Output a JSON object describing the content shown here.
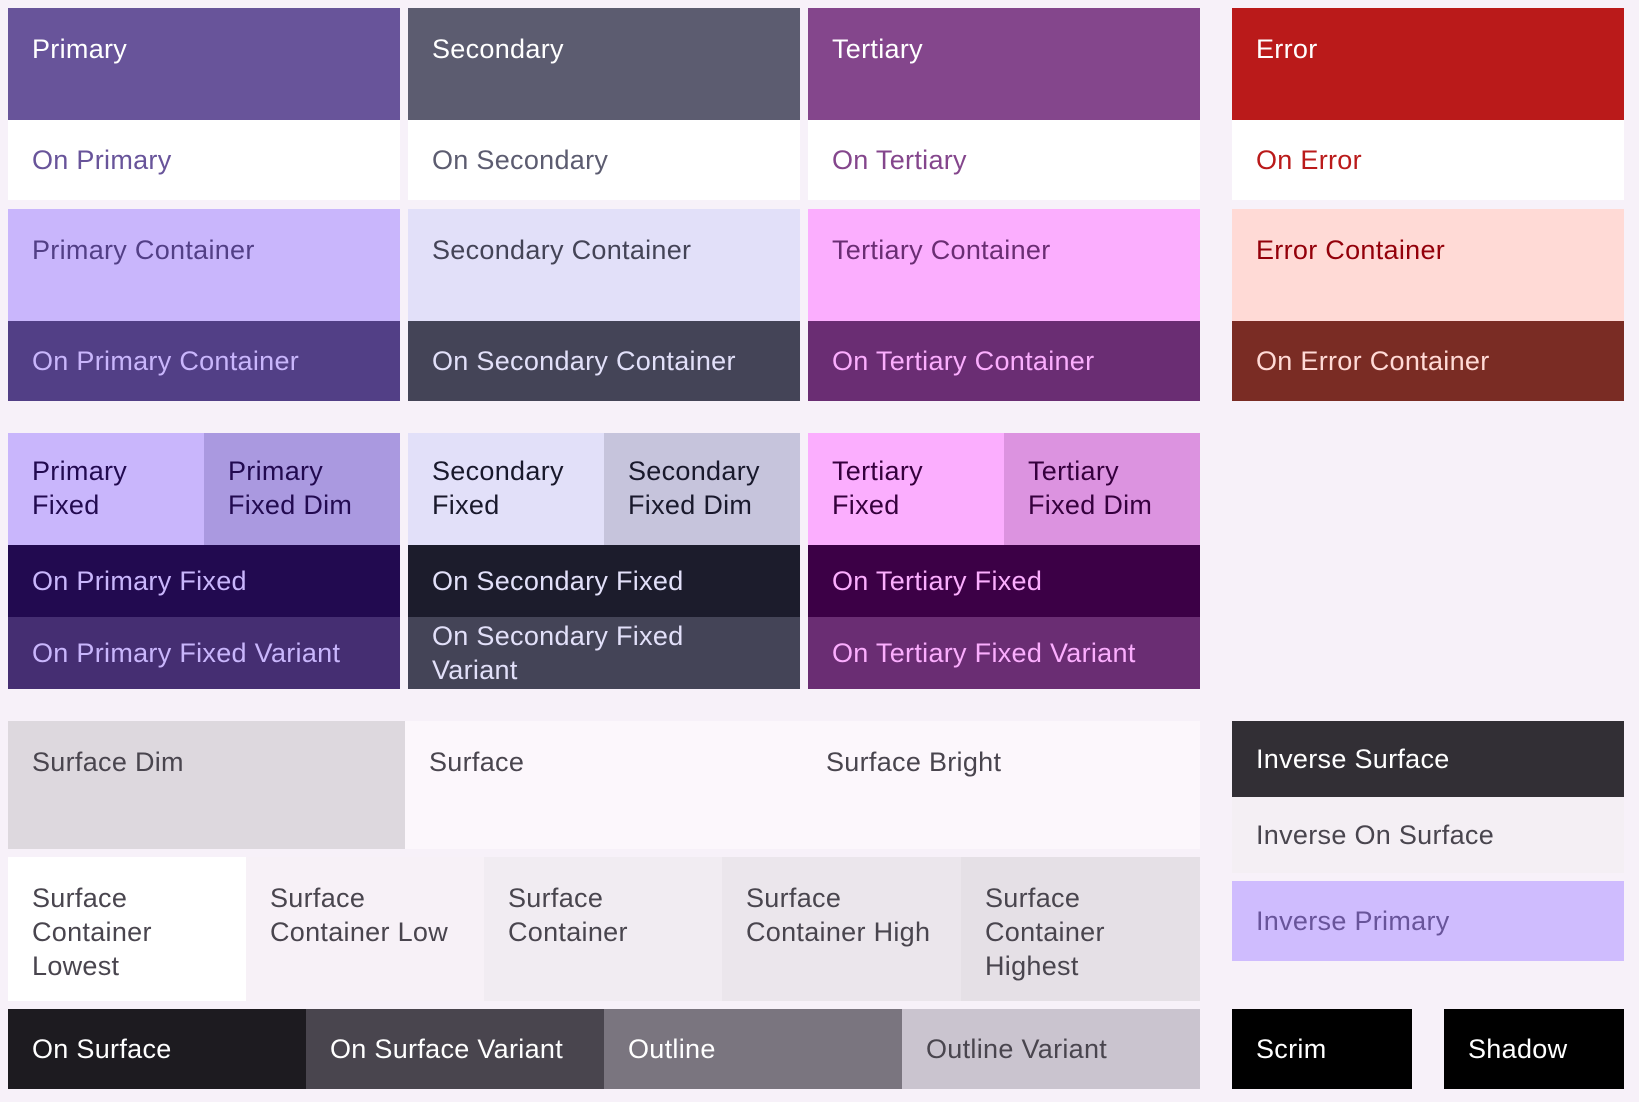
{
  "roles": {
    "primary": {
      "label": "Primary",
      "bg": "#68549a",
      "fg": "#ffffff"
    },
    "on_primary": {
      "label": "On Primary",
      "bg": "#ffffff",
      "fg": "#68549a"
    },
    "primary_container": {
      "label": "Primary Container",
      "bg": "#c9b6fc",
      "fg": "#523f86"
    },
    "on_primary_container": {
      "label": "On Primary Container",
      "bg": "#523f86",
      "fg": "#c9b6fc"
    },
    "secondary": {
      "label": "Secondary",
      "bg": "#5c5c70",
      "fg": "#ffffff"
    },
    "on_secondary": {
      "label": "On Secondary",
      "bg": "#ffffff",
      "fg": "#5c5c70"
    },
    "secondary_container": {
      "label": "Secondary Container",
      "bg": "#e2e0f9",
      "fg": "#444457"
    },
    "on_secondary_container": {
      "label": "On Secondary Container",
      "bg": "#444457",
      "fg": "#e2e0f9"
    },
    "tertiary": {
      "label": "Tertiary",
      "bg": "#84468c",
      "fg": "#ffffff"
    },
    "on_tertiary": {
      "label": "On Tertiary",
      "bg": "#ffffff",
      "fg": "#84468c"
    },
    "tertiary_container": {
      "label": "Tertiary Container",
      "bg": "#fbaefe",
      "fg": "#6a2d73"
    },
    "on_tertiary_container": {
      "label": "On Tertiary Container",
      "bg": "#6a2d73",
      "fg": "#fbaefe"
    },
    "error": {
      "label": "Error",
      "bg": "#ba1a1a",
      "fg": "#ffffff"
    },
    "on_error": {
      "label": "On Error",
      "bg": "#ffffff",
      "fg": "#ba1a1a"
    },
    "error_container": {
      "label": "Error Container",
      "bg": "#ffdad6",
      "fg": "#93000a"
    },
    "on_error_container": {
      "label": "On Error Container",
      "bg": "#7a2c24",
      "fg": "#ffdad6"
    },
    "primary_fixed": {
      "label": "Primary\nFixed",
      "bg": "#c9b6fc",
      "fg": "#220a50"
    },
    "primary_fixed_dim": {
      "label": "Primary\nFixed Dim",
      "bg": "#aa99e0",
      "fg": "#220a50"
    },
    "on_primary_fixed": {
      "label": "On Primary Fixed",
      "bg": "#220a50",
      "fg": "#c9b6fc"
    },
    "on_primary_fixed_variant": {
      "label": "On Primary Fixed Variant",
      "bg": "#452e72",
      "fg": "#c9b6fc"
    },
    "secondary_fixed": {
      "label": "Secondary\nFixed",
      "bg": "#e2e0f9",
      "fg": "#19192c"
    },
    "secondary_fixed_dim": {
      "label": "Secondary\nFixed Dim",
      "bg": "#c6c4dc",
      "fg": "#19192c"
    },
    "on_secondary_fixed": {
      "label": "On Secondary Fixed",
      "bg": "#1c1c2c",
      "fg": "#e2e0f9"
    },
    "on_secondary_fixed_variant": {
      "label": "On Secondary Fixed Variant",
      "bg": "#444457",
      "fg": "#e2e0f9"
    },
    "tertiary_fixed": {
      "label": "Tertiary\nFixed",
      "bg": "#fbaefe",
      "fg": "#35003d"
    },
    "tertiary_fixed_dim": {
      "label": "Tertiary\nFixed Dim",
      "bg": "#dc93e0",
      "fg": "#35003d"
    },
    "on_tertiary_fixed": {
      "label": "On Tertiary Fixed",
      "bg": "#3c0046",
      "fg": "#fbaefe"
    },
    "on_tertiary_fixed_variant": {
      "label": "On Tertiary Fixed Variant",
      "bg": "#6a2d73",
      "fg": "#fbaefe"
    },
    "surface_dim": {
      "label": "Surface Dim",
      "bg": "#ddd8de",
      "fg": "#49454e"
    },
    "surface": {
      "label": "Surface",
      "bg": "#fcf7fc",
      "fg": "#49454e"
    },
    "surface_bright": {
      "label": "Surface Bright",
      "bg": "#fcf7fc",
      "fg": "#49454e"
    },
    "surface_container_lowest": {
      "label": "Surface\nContainer\nLowest",
      "bg": "#ffffff",
      "fg": "#49454e"
    },
    "surface_container_low": {
      "label": "Surface\nContainer Low",
      "bg": "#f7f1f7",
      "fg": "#49454e"
    },
    "surface_container": {
      "label": "Surface\nContainer",
      "bg": "#f1ecf2",
      "fg": "#49454e"
    },
    "surface_container_high": {
      "label": "Surface\nContainer High",
      "bg": "#ebe6ec",
      "fg": "#49454e"
    },
    "surface_container_highest": {
      "label": "Surface\nContainer\nHighest",
      "bg": "#e5e0e6",
      "fg": "#49454e"
    },
    "on_surface": {
      "label": "On Surface",
      "bg": "#1d1b20",
      "fg": "#ffffff"
    },
    "on_surface_variant": {
      "label": "On Surface Variant",
      "bg": "#49454e",
      "fg": "#ffffff"
    },
    "outline": {
      "label": "Outline",
      "bg": "#7a757f",
      "fg": "#ffffff"
    },
    "outline_variant": {
      "label": "Outline Variant",
      "bg": "#cac4cf",
      "fg": "#49454e"
    },
    "inverse_surface": {
      "label": "Inverse Surface",
      "bg": "#322f35",
      "fg": "#ffffff"
    },
    "inverse_on_surface": {
      "label": "Inverse On Surface",
      "bg": "#f4eff4",
      "fg": "#49454e"
    },
    "inverse_primary": {
      "label": "Inverse Primary",
      "bg": "#cfbcfe",
      "fg": "#68549a"
    },
    "scrim": {
      "label": "Scrim",
      "bg": "#000000",
      "fg": "#ffffff"
    },
    "shadow": {
      "label": "Shadow",
      "bg": "#000000",
      "fg": "#ffffff"
    }
  }
}
